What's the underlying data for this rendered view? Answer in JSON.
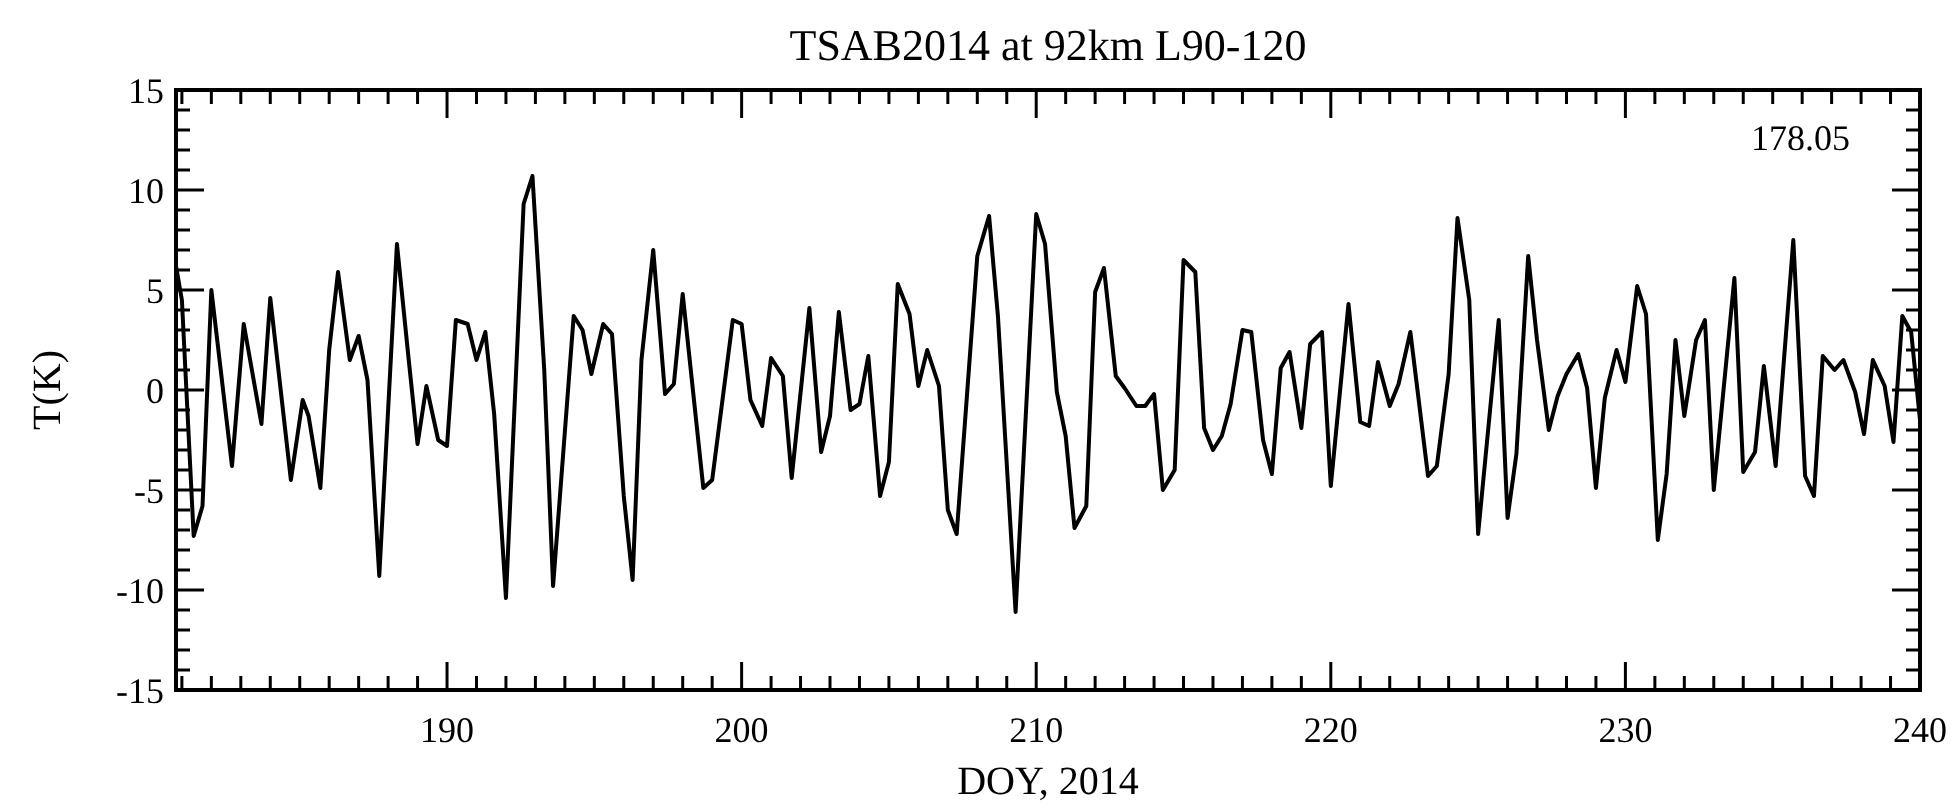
{
  "chart_data": {
    "type": "line",
    "title": "TSAB2014 at 92km L90-120",
    "xlabel": "DOY, 2014",
    "ylabel": "T(K)",
    "annotations": [
      "178.05"
    ],
    "xlim": [
      180.8,
      240
    ],
    "ylim": [
      -15,
      15
    ],
    "xticks": [
      {
        "value": 181,
        "label": null
      },
      {
        "value": 182,
        "label": null
      },
      {
        "value": 183,
        "label": null
      },
      {
        "value": 184,
        "label": null
      },
      {
        "value": 185,
        "label": null
      },
      {
        "value": 186,
        "label": null
      },
      {
        "value": 187,
        "label": null
      },
      {
        "value": 188,
        "label": null
      },
      {
        "value": 189,
        "label": null
      },
      190,
      {
        "value": 191,
        "label": null
      },
      {
        "value": 192,
        "label": null
      },
      {
        "value": 193,
        "label": null
      },
      {
        "value": 194,
        "label": null
      },
      {
        "value": 195,
        "label": null
      },
      {
        "value": 196,
        "label": null
      },
      {
        "value": 197,
        "label": null
      },
      {
        "value": 198,
        "label": null
      },
      {
        "value": 199,
        "label": null
      },
      200,
      {
        "value": 201,
        "label": null
      },
      {
        "value": 202,
        "label": null
      },
      {
        "value": 203,
        "label": null
      },
      {
        "value": 204,
        "label": null
      },
      {
        "value": 205,
        "label": null
      },
      {
        "value": 206,
        "label": null
      },
      {
        "value": 207,
        "label": null
      },
      {
        "value": 208,
        "label": null
      },
      {
        "value": 209,
        "label": null
      },
      210,
      {
        "value": 211,
        "label": null
      },
      {
        "value": 212,
        "label": null
      },
      {
        "value": 213,
        "label": null
      },
      {
        "value": 214,
        "label": null
      },
      {
        "value": 215,
        "label": null
      },
      {
        "value": 216,
        "label": null
      },
      {
        "value": 217,
        "label": null
      },
      {
        "value": 218,
        "label": null
      },
      {
        "value": 219,
        "label": null
      },
      220,
      {
        "value": 221,
        "label": null
      },
      {
        "value": 222,
        "label": null
      },
      {
        "value": 223,
        "label": null
      },
      {
        "value": 224,
        "label": null
      },
      {
        "value": 225,
        "label": null
      },
      {
        "value": 226,
        "label": null
      },
      {
        "value": 227,
        "label": null
      },
      {
        "value": 228,
        "label": null
      },
      {
        "value": 229,
        "label": null
      },
      230,
      {
        "value": 231,
        "label": null
      },
      {
        "value": 232,
        "label": null
      },
      {
        "value": 233,
        "label": null
      },
      {
        "value": 234,
        "label": null
      },
      {
        "value": 235,
        "label": null
      },
      {
        "value": 236,
        "label": null
      },
      {
        "value": 237,
        "label": null
      },
      {
        "value": 238,
        "label": null
      },
      {
        "value": 239,
        "label": null
      },
      240
    ],
    "yticks": [
      -15,
      {
        "value": -14,
        "label": null
      },
      {
        "value": -13,
        "label": null
      },
      {
        "value": -12,
        "label": null
      },
      {
        "value": -11,
        "label": null
      },
      -10,
      {
        "value": -9,
        "label": null
      },
      {
        "value": -8,
        "label": null
      },
      {
        "value": -7,
        "label": null
      },
      {
        "value": -6,
        "label": null
      },
      -5,
      {
        "value": -4,
        "label": null
      },
      {
        "value": -3,
        "label": null
      },
      {
        "value": -2,
        "label": null
      },
      {
        "value": -1,
        "label": null
      },
      0,
      {
        "value": 1,
        "label": null
      },
      {
        "value": 2,
        "label": null
      },
      {
        "value": 3,
        "label": null
      },
      {
        "value": 4,
        "label": null
      },
      5,
      {
        "value": 6,
        "label": null
      },
      {
        "value": 7,
        "label": null
      },
      {
        "value": 8,
        "label": null
      },
      {
        "value": 9,
        "label": null
      },
      10,
      {
        "value": 11,
        "label": null
      },
      {
        "value": 12,
        "label": null
      },
      {
        "value": 13,
        "label": null
      },
      {
        "value": 14,
        "label": null
      },
      15
    ],
    "series": [
      {
        "color": "#000000",
        "x": [
          180.8,
          181.0,
          181.4,
          181.7,
          182.0,
          182.7,
          183.1,
          183.7,
          184.0,
          184.7,
          185.1,
          185.3,
          185.7,
          186.0,
          186.3,
          186.7,
          187.0,
          187.3,
          187.7,
          188.3,
          188.7,
          189.0,
          189.3,
          189.7,
          190.0,
          190.3,
          190.7,
          191.0,
          191.3,
          191.6,
          192.0,
          192.6,
          192.9,
          193.3,
          193.6,
          194.3,
          194.6,
          194.9,
          195.3,
          195.6,
          196.0,
          196.3,
          196.6,
          197.0,
          197.4,
          197.7,
          198.0,
          198.7,
          199.0,
          199.7,
          200.0,
          200.3,
          200.7,
          201.0,
          201.4,
          201.7,
          202.3,
          202.7,
          203.0,
          203.3,
          203.7,
          204.0,
          204.3,
          204.7,
          205.0,
          205.3,
          205.7,
          206.0,
          206.3,
          206.7,
          207.0,
          207.3,
          208.0,
          208.4,
          208.7,
          209.3,
          210.0,
          210.3,
          210.7,
          211.0,
          211.3,
          211.7,
          212.0,
          212.3,
          212.7,
          213.0,
          213.4,
          213.7,
          214.0,
          214.3,
          214.7,
          215.0,
          215.4,
          215.7,
          216.0,
          216.3,
          216.6,
          217.0,
          217.3,
          217.7,
          218.0,
          218.3,
          218.6,
          219.0,
          219.3,
          219.7,
          220.0,
          220.6,
          221.0,
          221.3,
          221.6,
          222.0,
          222.3,
          222.7,
          223.3,
          223.6,
          224.0,
          224.3,
          224.7,
          225.0,
          225.7,
          226.0,
          226.3,
          226.7,
          227.0,
          227.4,
          227.7,
          228.0,
          228.4,
          228.7,
          229.0,
          229.3,
          229.7,
          230.0,
          230.4,
          230.7,
          231.1,
          231.4,
          231.7,
          232.0,
          232.4,
          232.7,
          233.0,
          233.7,
          234.0,
          234.4,
          234.7,
          235.1,
          235.7,
          236.1,
          236.4,
          236.7,
          237.1,
          237.4,
          237.8,
          238.1,
          238.4,
          238.8,
          239.1,
          239.4,
          239.7,
          240.0
        ],
        "values": [
          6.2,
          4.5,
          -7.3,
          -5.8,
          5.0,
          -3.8,
          3.3,
          -1.7,
          4.6,
          -4.5,
          -0.5,
          -1.3,
          -4.9,
          2.0,
          5.9,
          1.5,
          2.7,
          0.5,
          -9.3,
          7.3,
          1.5,
          -2.7,
          0.2,
          -2.5,
          -2.8,
          3.5,
          3.3,
          1.5,
          2.9,
          -1.2,
          -10.4,
          9.3,
          10.7,
          1.0,
          -9.8,
          3.7,
          3.0,
          0.8,
          3.3,
          2.8,
          -5.3,
          -9.5,
          1.5,
          7.0,
          -0.2,
          0.3,
          4.8,
          -4.9,
          -4.5,
          3.5,
          3.3,
          -0.5,
          -1.8,
          1.6,
          0.7,
          -4.4,
          4.1,
          -3.1,
          -1.3,
          3.9,
          -1.0,
          -0.7,
          1.7,
          -5.3,
          -3.6,
          5.3,
          3.8,
          0.2,
          2.0,
          0.2,
          -6.0,
          -7.2,
          6.7,
          8.7,
          3.7,
          -11.1,
          8.8,
          7.3,
          -0.1,
          -2.3,
          -6.9,
          -5.8,
          4.9,
          6.1,
          0.7,
          0.1,
          -0.8,
          -0.8,
          -0.2,
          -5.0,
          -4.0,
          6.5,
          5.9,
          -1.9,
          -3.0,
          -2.3,
          -0.7,
          3.0,
          2.9,
          -2.5,
          -4.2,
          1.1,
          1.9,
          -1.9,
          2.3,
          2.9,
          -4.8,
          4.3,
          -1.6,
          -1.8,
          1.4,
          -0.8,
          0.3,
          2.9,
          -4.3,
          -3.8,
          0.8,
          8.6,
          4.5,
          -7.2,
          3.5,
          -6.4,
          -3.2,
          6.7,
          2.5,
          -2.0,
          -0.3,
          0.8,
          1.8,
          0.1,
          -4.9,
          -0.4,
          2.0,
          0.4,
          5.2,
          3.8,
          -7.5,
          -4.2,
          2.5,
          -1.3,
          2.5,
          3.5,
          -5.0,
          5.6,
          -4.1,
          -3.1,
          1.2,
          -3.8,
          7.5,
          -4.3,
          -5.3,
          1.7,
          1.0,
          1.5,
          -0.1,
          -2.2,
          1.5,
          0.2,
          -2.6,
          3.7,
          2.9,
          -1.5
        ]
      }
    ]
  }
}
